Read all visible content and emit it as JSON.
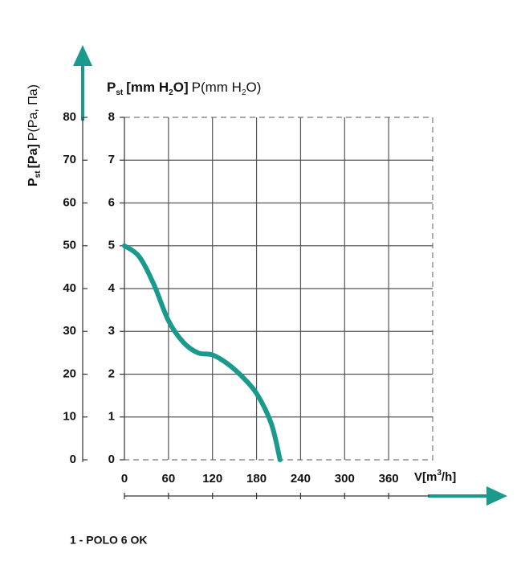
{
  "chart_data": {
    "type": "line",
    "y_label_parts": [
      "P",
      "st",
      "[mm H",
      "2",
      "O]",
      "P(mm H",
      "2",
      "O)"
    ],
    "y2_label_parts": [
      "P",
      "st",
      "[Pa]",
      "P(Pa, Па)"
    ],
    "x_label_parts": [
      "V[m",
      "3",
      "/h]"
    ],
    "x": [
      0,
      20,
      40,
      60,
      80,
      100,
      120,
      140,
      160,
      180,
      200,
      212
    ],
    "series": [
      {
        "name": "1 - POLO 6 OK",
        "color": "#1a9a8c",
        "values": [
          5,
          4.75,
          4.1,
          3.25,
          2.75,
          2.5,
          2.45,
          2.25,
          1.95,
          1.55,
          0.85,
          0
        ]
      }
    ],
    "xlim": [
      0,
      420
    ],
    "xticks": [
      0,
      60,
      120,
      180,
      240,
      300,
      360
    ],
    "ylim": [
      0,
      8
    ],
    "yticks": [
      0,
      1,
      2,
      3,
      4,
      5,
      6,
      7,
      8
    ],
    "y2lim": [
      0,
      80
    ],
    "y2ticks": [
      0,
      10,
      20,
      30,
      40,
      50,
      60,
      70,
      80
    ],
    "grid": true
  }
}
